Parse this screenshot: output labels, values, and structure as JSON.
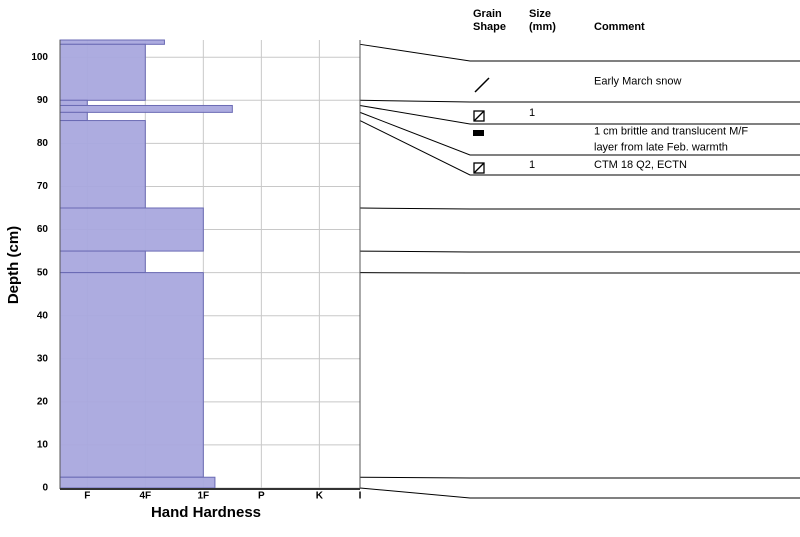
{
  "chart_data": {
    "type": "snowprofile",
    "ylabel": "Depth (cm)",
    "xlabel": "Hand Hardness",
    "ylim": [
      0,
      104
    ],
    "yticks": [
      0,
      10,
      20,
      30,
      40,
      50,
      60,
      70,
      80,
      90,
      100
    ],
    "xlim": [
      0.53,
      5.7
    ],
    "xticks": [
      {
        "value": 1,
        "label": "F"
      },
      {
        "value": 2,
        "label": "4F"
      },
      {
        "value": 3,
        "label": "1F"
      },
      {
        "value": 4,
        "label": "P"
      },
      {
        "value": 5,
        "label": "K"
      },
      {
        "value": 5.7,
        "label": "I"
      }
    ],
    "color": "#a9a8de",
    "grid": true,
    "headers": {
      "grain_shape": [
        "Grain",
        "Shape"
      ],
      "size": [
        "Size",
        "(mm)"
      ],
      "comment": "Comment"
    },
    "layers": [
      {
        "top": 104,
        "bottom": 103,
        "hardness": 2.33
      },
      {
        "top": 103,
        "bottom": 90,
        "hardness": 2,
        "comment": [
          "Early March snow"
        ]
      },
      {
        "top": 90,
        "bottom": 88.8,
        "hardness": 1,
        "size": 1
      },
      {
        "top": 88.8,
        "bottom": 87.2,
        "hardness": 3.5,
        "comment": [
          "1 cm brittle and translucent M/F",
          "layer from late Feb. warmth"
        ]
      },
      {
        "top": 87.2,
        "bottom": 85.3,
        "hardness": 1,
        "size": 1,
        "comment": [
          "CTM 18 Q2, ECTN"
        ]
      },
      {
        "top": 85.3,
        "bottom": 65,
        "hardness": 2
      },
      {
        "top": 65,
        "bottom": 55,
        "hardness": 3
      },
      {
        "top": 55,
        "bottom": 50,
        "hardness": 2
      },
      {
        "top": 50,
        "bottom": 2.5,
        "hardness": 3
      },
      {
        "top": 2.5,
        "bottom": 0,
        "hardness": 3.2
      }
    ]
  }
}
